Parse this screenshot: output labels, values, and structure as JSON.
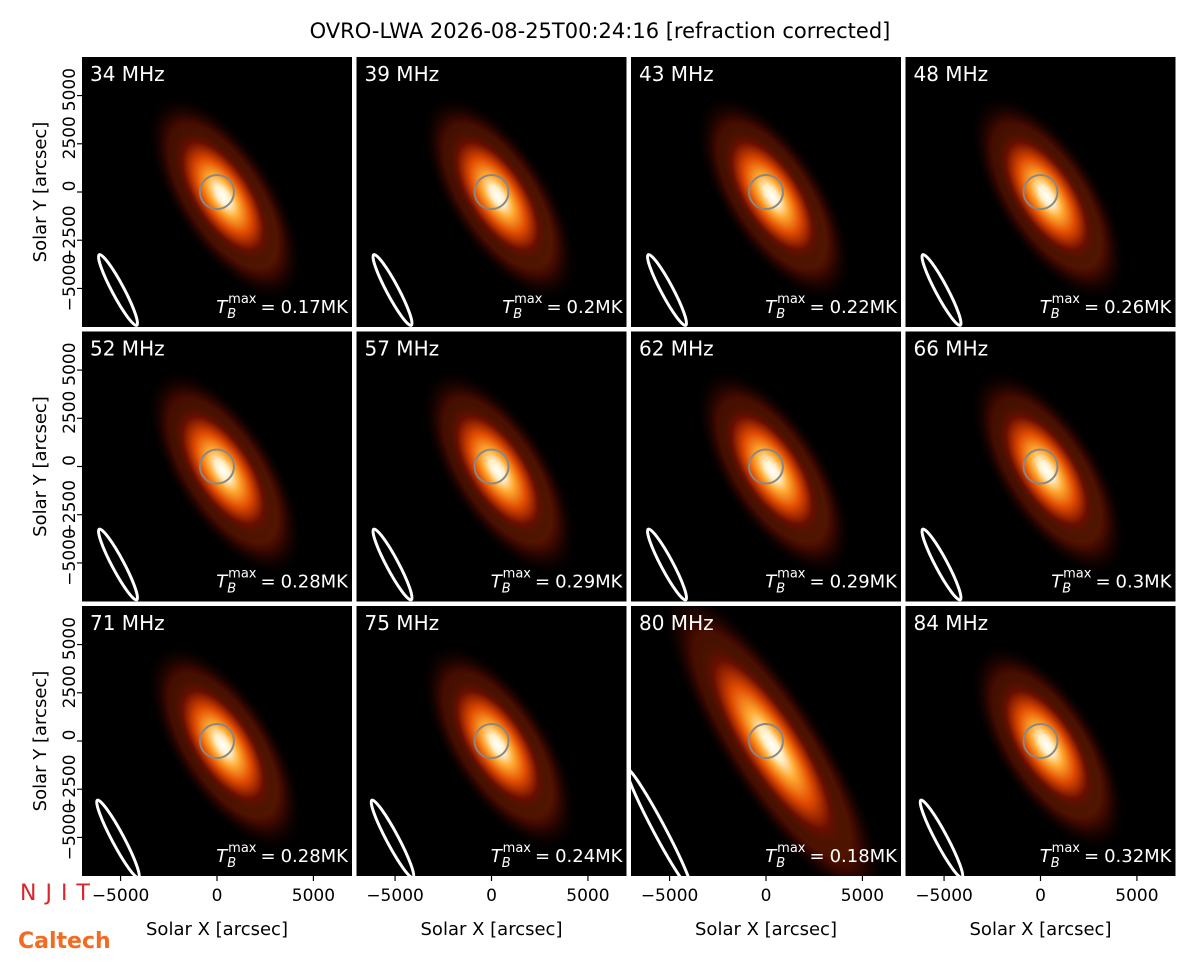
{
  "chart_data": {
    "type": "image_grid",
    "title": "OVRO-LWA 2026-08-25T00:24:16 [refraction corrected]",
    "xlabel": "Solar X [arcsec]",
    "ylabel": "Solar Y [arcsec]",
    "xlim": [
      -7000,
      7000
    ],
    "ylim": [
      -7000,
      7000
    ],
    "xticks": [
      {
        "value": -5000,
        "label": "−5000"
      },
      0,
      5000
    ],
    "yticks": [
      {
        "value": -5000,
        "label": "−5000"
      },
      {
        "value": -2500,
        "label": "−2500"
      },
      0,
      2500,
      5000
    ],
    "tb_symbol": "T",
    "tb_sub": "B",
    "tb_sup": "max",
    "tb_eq": "=",
    "panels": [
      {
        "freq": "34 MHz",
        "tb_max": "0.17MK"
      },
      {
        "freq": "39 MHz",
        "tb_max": "0.2MK"
      },
      {
        "freq": "43 MHz",
        "tb_max": "0.22MK"
      },
      {
        "freq": "48 MHz",
        "tb_max": "0.26MK"
      },
      {
        "freq": "52 MHz",
        "tb_max": "0.28MK"
      },
      {
        "freq": "57 MHz",
        "tb_max": "0.29MK"
      },
      {
        "freq": "62 MHz",
        "tb_max": "0.29MK"
      },
      {
        "freq": "66 MHz",
        "tb_max": "0.3MK"
      },
      {
        "freq": "71 MHz",
        "tb_max": "0.28MK"
      },
      {
        "freq": "75 MHz",
        "tb_max": "0.24MK"
      },
      {
        "freq": "80 MHz",
        "tb_max": "0.18MK"
      },
      {
        "freq": "84 MHz",
        "tb_max": "0.32MK"
      }
    ],
    "logos": {
      "njit": "NJIT",
      "caltech": "Caltech"
    }
  }
}
